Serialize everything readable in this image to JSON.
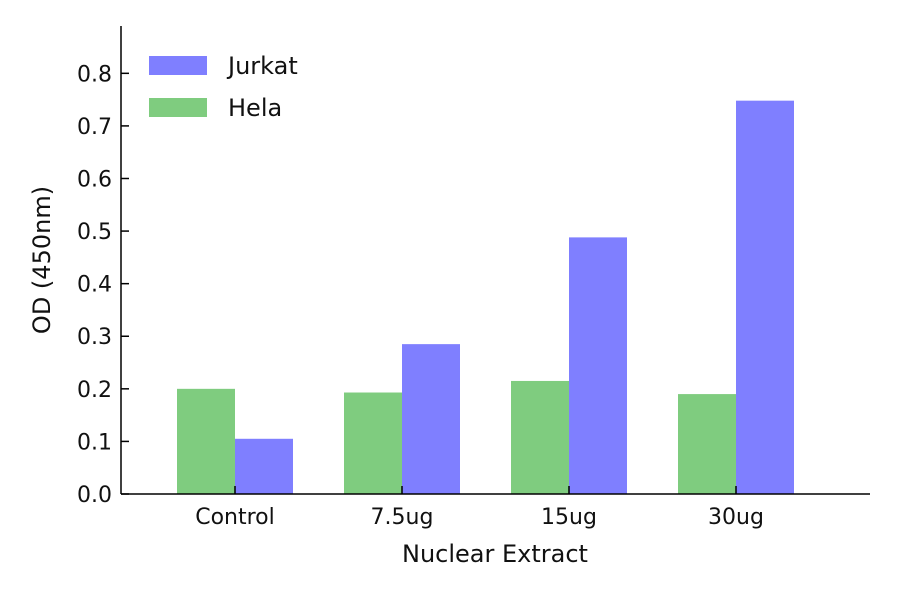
{
  "chart_data": {
    "type": "bar",
    "title": "",
    "xlabel": "Nuclear Extract",
    "ylabel": "OD (450nm)",
    "categories": [
      "Control",
      "7.5ug",
      "15ug",
      "30ug"
    ],
    "series": [
      {
        "name": "Hela",
        "color": "#7fcc7f",
        "values": [
          0.2,
          0.193,
          0.215,
          0.19
        ]
      },
      {
        "name": "Jurkat",
        "color": "#7f7fff",
        "values": [
          0.105,
          0.285,
          0.488,
          0.748
        ]
      }
    ],
    "ylim": [
      0.0,
      0.89
    ],
    "yticks": [
      0.0,
      0.1,
      0.2,
      0.3,
      0.4,
      0.5,
      0.6,
      0.7,
      0.8
    ],
    "ytick_labels": [
      "0.0",
      "0.1",
      "0.2",
      "0.3",
      "0.4",
      "0.5",
      "0.6",
      "0.7",
      "0.8"
    ],
    "grid": false,
    "legend": {
      "placement": "top-left",
      "entries": [
        {
          "label": "Jurkat",
          "color": "#7f7fff"
        },
        {
          "label": "Hela",
          "color": "#7fcc7f"
        }
      ]
    }
  }
}
